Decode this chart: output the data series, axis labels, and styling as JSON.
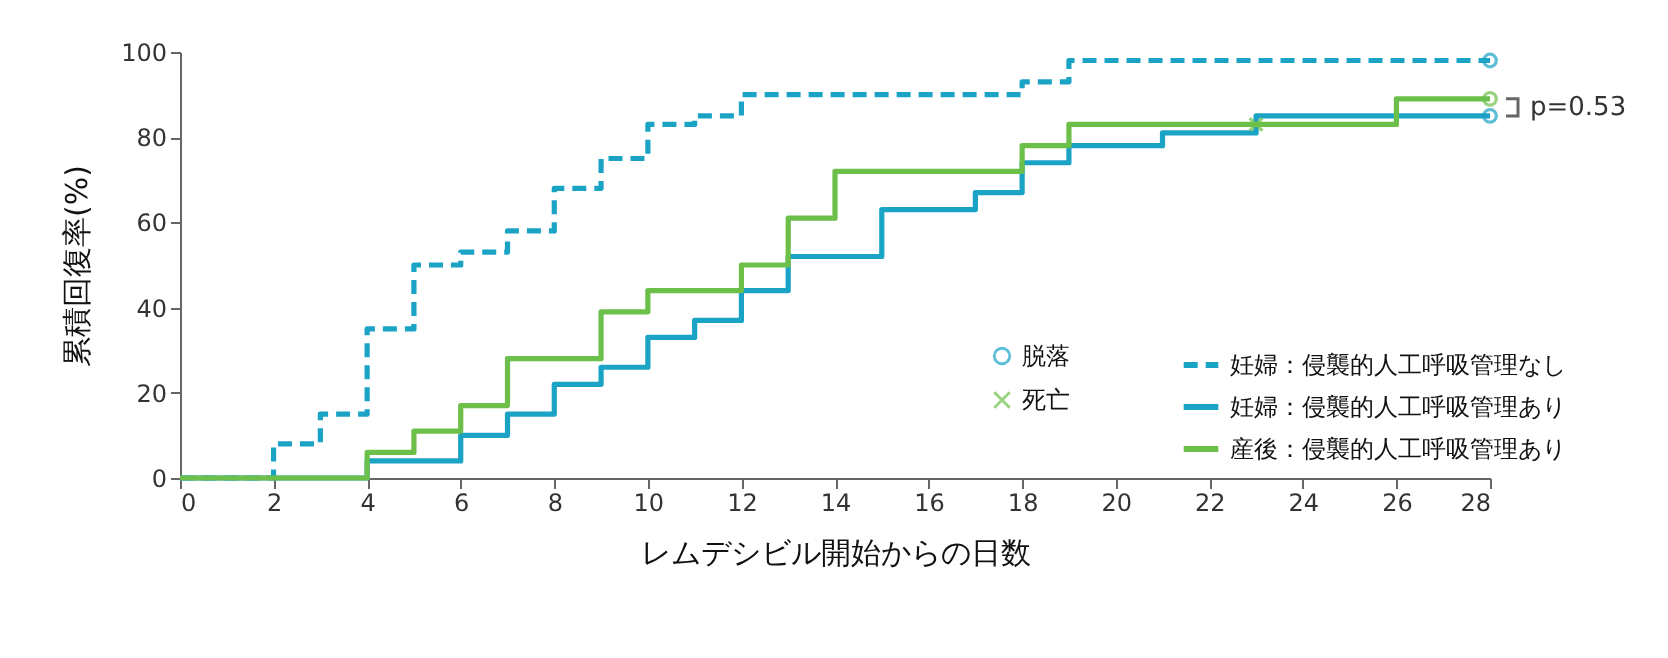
{
  "chart_data": {
    "type": "step",
    "xlabel": "レムデシビル開始からの日数",
    "ylabel": "累積回復率(%)",
    "xlim": [
      0,
      28
    ],
    "xticks": [
      0,
      2,
      4,
      6,
      8,
      10,
      12,
      14,
      16,
      18,
      20,
      22,
      24,
      26,
      28
    ],
    "ylim": [
      0,
      100
    ],
    "yticks": [
      0,
      20,
      40,
      60,
      80,
      100
    ],
    "grid": false,
    "legend": "bottom right",
    "annotations": [
      {
        "text": "p=0.53",
        "x": 28,
        "y": 87
      }
    ],
    "series": [
      {
        "name": "妊婦：侵襲的人工呼吸管理なし",
        "color": "#1ba3c6",
        "line_style": "dashed",
        "x": [
          0,
          2,
          3,
          4,
          5,
          6,
          7,
          8,
          9,
          10,
          11,
          12,
          18,
          19,
          28
        ],
        "values": [
          0,
          8,
          15,
          35,
          50,
          53,
          58,
          68,
          75,
          83,
          85,
          90,
          93,
          98,
          98
        ]
      },
      {
        "name": "妊婦：侵襲的人工呼吸管理あり",
        "color": "#1ba3c6",
        "line_style": "solid",
        "x": [
          0,
          4,
          6,
          7,
          8,
          9,
          10,
          11,
          12,
          13,
          15,
          17,
          18,
          19,
          21,
          23,
          28
        ],
        "values": [
          0,
          4,
          10,
          15,
          22,
          26,
          33,
          37,
          44,
          52,
          63,
          67,
          74,
          78,
          81,
          85,
          85
        ]
      },
      {
        "name": "産後：侵襲的人工呼吸管理あり",
        "color": "#6cc04a",
        "line_style": "solid",
        "x": [
          0,
          4,
          5,
          6,
          7,
          9,
          10,
          12,
          13,
          14,
          18,
          19,
          26,
          28
        ],
        "values": [
          0,
          6,
          11,
          17,
          28,
          39,
          44,
          50,
          61,
          72,
          78,
          83,
          89,
          89
        ]
      },
      {
        "name": "脱落",
        "type": "scatter",
        "marker": "circle",
        "color": "#1ba3c6",
        "x": [
          28,
          28,
          28
        ],
        "values": [
          98,
          89,
          85
        ],
        "colors": [
          "#1ba3c6",
          "#6cc04a",
          "#1ba3c6"
        ]
      },
      {
        "name": "死亡",
        "type": "scatter",
        "marker": "cross",
        "color": "#6cc04a",
        "x": [
          23
        ],
        "values": [
          83
        ],
        "colors": [
          "#6cc04a"
        ]
      }
    ]
  }
}
